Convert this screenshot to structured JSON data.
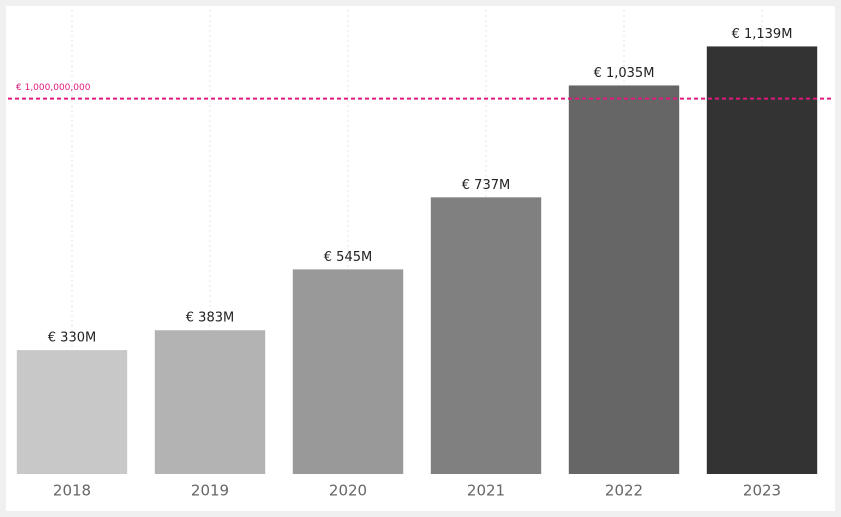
{
  "chart_data": {
    "type": "bar",
    "categories": [
      "2018",
      "2019",
      "2020",
      "2021",
      "2022",
      "2023"
    ],
    "values": [
      330000000,
      383000000,
      545000000,
      737000000,
      1035000000,
      1139000000
    ],
    "value_labels": [
      "€ 330M",
      "€ 383M",
      "€ 545M",
      "€ 737M",
      "€ 1,035M",
      "€ 1,139M"
    ],
    "colors": [
      "#c8c8c8",
      "#b3b3b3",
      "#999999",
      "#808080",
      "#666666",
      "#333333"
    ],
    "ylim": [
      0,
      1260000000
    ],
    "grid": true,
    "reference_line": {
      "value": 1000000000,
      "label": "€ 1,000,000,000",
      "color": "#e0197d"
    }
  }
}
